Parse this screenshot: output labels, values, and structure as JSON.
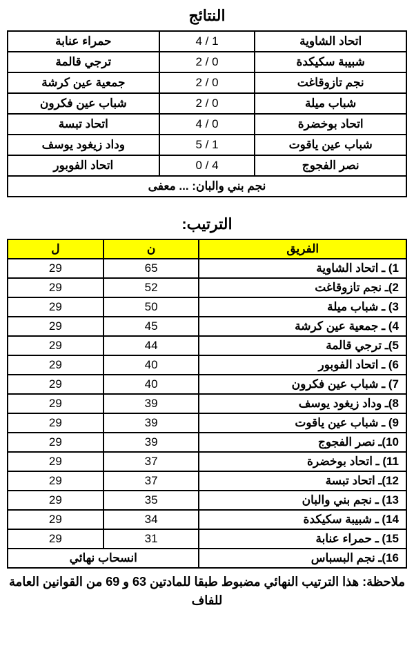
{
  "results": {
    "title": "النتائج",
    "rows": [
      {
        "home": "اتحاد الشاوية",
        "score": "1 / 4",
        "away": "حمراء عنابة"
      },
      {
        "home": "شبيبة سكيكدة",
        "score": "0 / 2",
        "away": "ترجي قالمة"
      },
      {
        "home": "نجم تازوقاغت",
        "score": "0 / 2",
        "away": "جمعية عين كرشة"
      },
      {
        "home": "شباب ميلة",
        "score": "0 / 2",
        "away": "شباب عين فكرون"
      },
      {
        "home": "اتحاد بوخضرة",
        "score": "0 / 4",
        "away": "اتحاد تبسة"
      },
      {
        "home": "شباب عين ياقوت",
        "score": "1 / 5",
        "away": "وداد زيغود يوسف"
      },
      {
        "home": "نصر الفجوج",
        "score": "4 / 0",
        "away": "اتحاد الفوبور"
      }
    ],
    "exempt": "نجم بني والبان: ... معفى"
  },
  "standings": {
    "title": "الترتيب:",
    "headers": {
      "team": "الفريق",
      "points": "ن",
      "played": "ل"
    },
    "rows": [
      {
        "team": "1) ـ اتحاد الشاوية",
        "pts": "65",
        "pl": "29"
      },
      {
        "team": "2)ـ نجم تازوقاغت",
        "pts": "52",
        "pl": "29"
      },
      {
        "team": "3) ـ شباب ميلة",
        "pts": "50",
        "pl": "29"
      },
      {
        "team": "4) ـ جمعية عين كرشة",
        "pts": "45",
        "pl": "29"
      },
      {
        "team": "5)ـ ترجي قالمة",
        "pts": "44",
        "pl": "29"
      },
      {
        "team": "6) ـ اتحاد الفوبور",
        "pts": "40",
        "pl": "29"
      },
      {
        "team": "7) ـ شباب عين فكرون",
        "pts": "40",
        "pl": "29"
      },
      {
        "team": "8)ـ وداد زيغود يوسف",
        "pts": "39",
        "pl": "29"
      },
      {
        "team": "9) ـ شباب عين ياقوت",
        "pts": "39",
        "pl": "29"
      },
      {
        "team": "10)ـ نصر الفجوج",
        "pts": "39",
        "pl": "29"
      },
      {
        "team": "11) ـ اتحاد بوخضرة",
        "pts": "37",
        "pl": "29"
      },
      {
        "team": "12)ـ اتحاد تبسة",
        "pts": "37",
        "pl": "29"
      },
      {
        "team": "13) ـ نجم بني والبان",
        "pts": "35",
        "pl": "29"
      },
      {
        "team": "14) ـ شبيبة سكيكدة",
        "pts": "34",
        "pl": "29"
      },
      {
        "team": "15) ـ حمراء عنابة",
        "pts": "31",
        "pl": "29"
      }
    ],
    "withdrawn": {
      "team": "16)ـ نجم البسباس",
      "label": "انسحاب نهائي"
    }
  },
  "note": "ملاحظة: هذا الترتيب النهائي مضبوط طبقا للمادتين 63 و 69 من القوانين العامة للفاف"
}
